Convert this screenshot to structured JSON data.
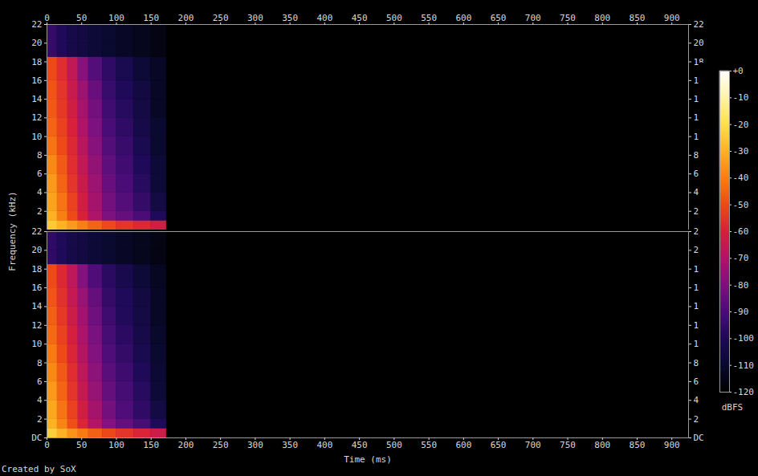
{
  "chart_data": {
    "type": "heatmap",
    "x_label": "Time (ms)",
    "y_label": "Frequency (kHz)",
    "caption": "Created by SoX",
    "xlim": [
      0,
      924
    ],
    "xticks": [
      0,
      50,
      100,
      150,
      200,
      250,
      300,
      350,
      400,
      450,
      500,
      550,
      600,
      650,
      700,
      750,
      800,
      850,
      900
    ],
    "x_edges": [
      0,
      15,
      30,
      45,
      60,
      80,
      100,
      125,
      150,
      172
    ],
    "y_edges": [
      0,
      1,
      2,
      4,
      6,
      8,
      10,
      12,
      14,
      16,
      18.5,
      20,
      22
    ],
    "channels": [
      {
        "ylim": [
          0,
          22
        ],
        "yticks": [
          2,
          4,
          6,
          8,
          10,
          12,
          14,
          16,
          18,
          20,
          22
        ],
        "cells": [
          [
            -25,
            -30,
            -35,
            -40,
            -45,
            -50,
            -55,
            -58,
            -62
          ],
          [
            -30,
            -40,
            -50,
            -60,
            -70,
            -80,
            -85,
            -90,
            -100
          ],
          [
            -33,
            -42,
            -52,
            -62,
            -72,
            -82,
            -88,
            -95,
            -105
          ],
          [
            -35,
            -45,
            -55,
            -64,
            -74,
            -84,
            -90,
            -98,
            -108
          ],
          [
            -38,
            -47,
            -57,
            -66,
            -76,
            -86,
            -92,
            -100,
            -108
          ],
          [
            -42,
            -50,
            -58,
            -68,
            -78,
            -88,
            -94,
            -102,
            -110
          ],
          [
            -45,
            -52,
            -60,
            -70,
            -80,
            -90,
            -96,
            -104,
            -110
          ],
          [
            -47,
            -54,
            -62,
            -72,
            -82,
            -92,
            -98,
            -105,
            -112
          ],
          [
            -48,
            -55,
            -64,
            -74,
            -84,
            -94,
            -100,
            -106,
            -112
          ],
          [
            -50,
            -57,
            -66,
            -78,
            -88,
            -96,
            -102,
            -108,
            -112
          ],
          [
            -95,
            -100,
            -104,
            -106,
            -108,
            -110,
            -112,
            -114,
            -116
          ],
          [
            -95,
            -100,
            -104,
            -106,
            -108,
            -110,
            -112,
            -114,
            -116
          ]
        ]
      },
      {
        "ylim": [
          0,
          22
        ],
        "yticks": [
          {
            "value": 0,
            "label": "DC"
          },
          2,
          4,
          6,
          8,
          10,
          12,
          14,
          16,
          18,
          20,
          22
        ],
        "cells": [
          [
            -24,
            -30,
            -36,
            -41,
            -46,
            -51,
            -55,
            -59,
            -63
          ],
          [
            -30,
            -39,
            -49,
            -59,
            -69,
            -79,
            -85,
            -91,
            -100
          ],
          [
            -32,
            -42,
            -52,
            -62,
            -72,
            -82,
            -89,
            -96,
            -105
          ],
          [
            -35,
            -45,
            -55,
            -65,
            -75,
            -85,
            -91,
            -98,
            -108
          ],
          [
            -38,
            -47,
            -57,
            -67,
            -77,
            -87,
            -93,
            -100,
            -109
          ],
          [
            -41,
            -50,
            -59,
            -69,
            -79,
            -89,
            -95,
            -102,
            -110
          ],
          [
            -44,
            -52,
            -61,
            -71,
            -81,
            -91,
            -97,
            -104,
            -111
          ],
          [
            -46,
            -54,
            -63,
            -73,
            -83,
            -93,
            -99,
            -105,
            -112
          ],
          [
            -48,
            -56,
            -65,
            -75,
            -85,
            -95,
            -100,
            -106,
            -112
          ],
          [
            -50,
            -58,
            -67,
            -79,
            -89,
            -97,
            -103,
            -108,
            -113
          ],
          [
            -96,
            -100,
            -104,
            -106,
            -108,
            -110,
            -112,
            -114,
            -116
          ],
          [
            -96,
            -100,
            -104,
            -106,
            -108,
            -110,
            -112,
            -114,
            -116
          ]
        ]
      }
    ],
    "colorbar": {
      "label": "dBFS",
      "range": [
        -120,
        0
      ],
      "ticks": [
        {
          "value": 0,
          "label": "+0"
        },
        -10,
        -20,
        -30,
        -40,
        -50,
        -60,
        -70,
        -80,
        -90,
        -100,
        -110,
        -120
      ]
    }
  }
}
